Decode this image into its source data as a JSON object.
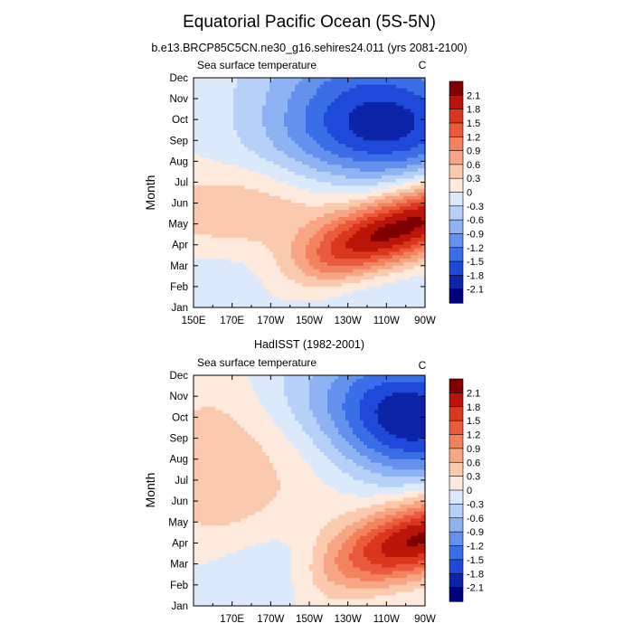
{
  "chart_data": {
    "type": "contour",
    "title": "Equatorial Pacific Ocean (5S-5N)",
    "colorbar_levels": [
      "2.1",
      "1.8",
      "1.5",
      "1.2",
      "0.9",
      "0.6",
      "0.3",
      "0",
      "-0.3",
      "-0.6",
      "-0.9",
      "-1.2",
      "-1.5",
      "-1.8",
      "-2.1"
    ],
    "colors": [
      "#7f0000",
      "#bb1408",
      "#d9371e",
      "#ea5a3c",
      "#f3825e",
      "#f6a685",
      "#fbcaae",
      "#feeadd",
      "#dbe9fb",
      "#b6d0f8",
      "#8eb2f2",
      "#6491ec",
      "#3a6ee6",
      "#1f49d9",
      "#0d23a8",
      "#00007a"
    ],
    "ylabel": "Month",
    "months": [
      "Jan",
      "Feb",
      "Mar",
      "Apr",
      "May",
      "Jun",
      "Jul",
      "Aug",
      "Sep",
      "Oct",
      "Nov",
      "Dec"
    ],
    "panels": [
      {
        "name": "model",
        "subtitle": "b.e13.BRCP85C5CN.ne30_g16.sehires24.011 (yrs 2081-2100)",
        "left_label": "Sea surface temperature",
        "right_label": "C",
        "xticks": [
          "150E",
          "170E",
          "170W",
          "150W",
          "130W",
          "110W",
          "90W"
        ],
        "xlim": [
          150,
          270
        ],
        "variable": "SST seasonal anomaly (C)",
        "description": "Warm anomalies (up to ~2.1 C) peak in Apr near 100W and tilt westward through Jun; cold anomalies (down to ~-1.8 C) peak in Sep-Oct near 120-100W."
      },
      {
        "name": "obs",
        "subtitle": "HadISST (1982-2001)",
        "left_label": "Sea surface temperature",
        "right_label": "C",
        "xticks": [
          "170E",
          "170W",
          "150W",
          "130W",
          "110W",
          "90W"
        ],
        "xlim": [
          150,
          270
        ],
        "variable": "SST seasonal anomaly (C)",
        "description": "Warm anomalies (up to ~2.1 C) peak in Mar-Apr near 95W; cold anomalies (down to ~-1.8 C) peak in Sep near 95W."
      }
    ]
  }
}
